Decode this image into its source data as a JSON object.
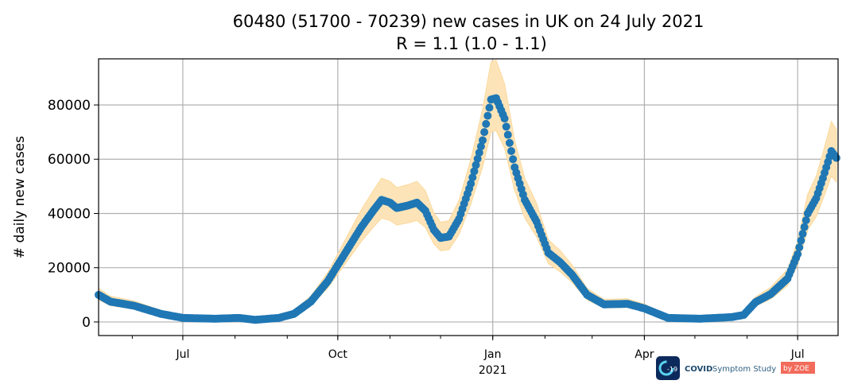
{
  "chart_data": {
    "type": "scatter",
    "title_line1": "60480 (51700 - 70239) new cases in UK on 24 July 2021",
    "title_line2": "R = 1.1 (1.0 - 1.1)",
    "xlabel": "",
    "ylabel": "# daily new cases",
    "xlim": [
      "2020-05-12",
      "2021-07-25"
    ],
    "ylim": [
      -5000,
      97000
    ],
    "grid": true,
    "yticks": [
      0,
      20000,
      40000,
      60000,
      80000
    ],
    "xticks": [
      {
        "date": "2020-07-01",
        "label": "Jul",
        "sub": ""
      },
      {
        "date": "2020-10-01",
        "label": "Oct",
        "sub": ""
      },
      {
        "date": "2021-01-01",
        "label": "Jan",
        "sub": "2021"
      },
      {
        "date": "2021-04-01",
        "label": "Apr",
        "sub": ""
      },
      {
        "date": "2021-07-01",
        "label": "Jul",
        "sub": ""
      }
    ],
    "series": [
      {
        "name": "new cases",
        "color": "#1f77b4",
        "band_color": "#fde4b8",
        "ci_low_factor": 0.86,
        "ci_high_factor": 1.16,
        "points": [
          [
            "2020-05-12",
            10000
          ],
          [
            "2020-05-19",
            7500
          ],
          [
            "2020-06-02",
            6000
          ],
          [
            "2020-06-18",
            3000
          ],
          [
            "2020-07-01",
            1500
          ],
          [
            "2020-07-20",
            1200
          ],
          [
            "2020-08-03",
            1500
          ],
          [
            "2020-08-13",
            800
          ],
          [
            "2020-08-27",
            1500
          ],
          [
            "2020-09-05",
            3000
          ],
          [
            "2020-09-15",
            7500
          ],
          [
            "2020-09-25",
            15000
          ],
          [
            "2020-10-01",
            21000
          ],
          [
            "2020-10-08",
            28000
          ],
          [
            "2020-10-15",
            35000
          ],
          [
            "2020-10-22",
            41000
          ],
          [
            "2020-10-27",
            45000
          ],
          [
            "2020-11-01",
            44000
          ],
          [
            "2020-11-05",
            42000
          ],
          [
            "2020-11-12",
            43000
          ],
          [
            "2020-11-17",
            44000
          ],
          [
            "2020-11-22",
            41000
          ],
          [
            "2020-11-27",
            34000
          ],
          [
            "2020-12-01",
            31000
          ],
          [
            "2020-12-06",
            31500
          ],
          [
            "2020-12-12",
            38000
          ],
          [
            "2020-12-19",
            51000
          ],
          [
            "2020-12-26",
            67000
          ],
          [
            "2020-12-31",
            82000
          ],
          [
            "2021-01-03",
            82500
          ],
          [
            "2021-01-08",
            75000
          ],
          [
            "2021-01-14",
            57000
          ],
          [
            "2021-01-20",
            45000
          ],
          [
            "2021-01-27",
            37000
          ],
          [
            "2021-02-03",
            25500
          ],
          [
            "2021-02-10",
            22000
          ],
          [
            "2021-02-17",
            17500
          ],
          [
            "2021-02-26",
            10000
          ],
          [
            "2021-03-08",
            6500
          ],
          [
            "2021-03-22",
            6700
          ],
          [
            "2021-04-01",
            5000
          ],
          [
            "2021-04-15",
            1500
          ],
          [
            "2021-05-04",
            1200
          ],
          [
            "2021-05-23",
            1800
          ],
          [
            "2021-05-30",
            2600
          ],
          [
            "2021-06-06",
            7300
          ],
          [
            "2021-06-15",
            10300
          ],
          [
            "2021-06-25",
            16000
          ],
          [
            "2021-07-01",
            25000
          ],
          [
            "2021-07-07",
            40000
          ],
          [
            "2021-07-12",
            45600
          ],
          [
            "2021-07-16",
            53000
          ],
          [
            "2021-07-21",
            63000
          ],
          [
            "2021-07-24",
            60480
          ]
        ]
      }
    ]
  },
  "logo": {
    "name": "COVID",
    "rest": "Symptom Study",
    "badge": "by ZOE",
    "icon_text": "-19"
  }
}
